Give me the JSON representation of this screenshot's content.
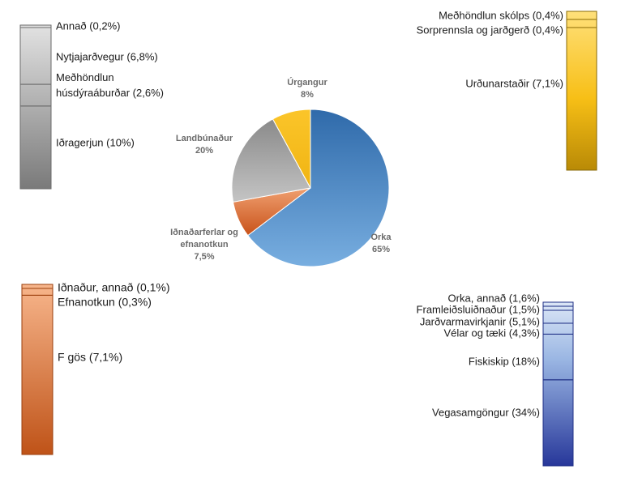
{
  "chart_data": [
    {
      "type": "pie",
      "categories": [
        "Orka",
        "Iðnaðarferlar og efnanotkun",
        "Landbúnaður",
        "Úrgangur"
      ],
      "values": [
        65,
        7.5,
        20,
        8
      ],
      "value_labels": [
        "65%",
        "7,5%",
        "20%",
        "8%"
      ],
      "colors": [
        "#4a86c6",
        "#e07a3c",
        "#a6a6a6",
        "#f6bd16"
      ]
    },
    {
      "type": "bar",
      "stacked": true,
      "breakdown_of": "Landbúnaður",
      "categories": [
        "Annað (0,2%)",
        "Nytjajarðvegur (6,8%)",
        "Meðhöndlun húsdýraáburðar (2,6%)",
        "Iðragerjun (10%)"
      ],
      "values": [
        0.2,
        6.8,
        2.6,
        10
      ],
      "color": "#a6a6a6"
    },
    {
      "type": "bar",
      "stacked": true,
      "breakdown_of": "Úrgangur",
      "categories": [
        "Meðhöndlun skólps (0,4%)",
        "Sorprennsla og jarðgerð (0,4%)",
        "Urðunarstaðir (7,1%)"
      ],
      "values": [
        0.4,
        0.4,
        7.1
      ],
      "color": "#f6bd16"
    },
    {
      "type": "bar",
      "stacked": true,
      "breakdown_of": "Iðnaðarferlar og efnanotkun",
      "categories": [
        "Iðnaður, annað (0,1%)",
        "Efnanotkun (0,3%)",
        "F gös (7,1%)"
      ],
      "values": [
        0.1,
        0.3,
        7.1
      ],
      "color": "#e07a3c"
    },
    {
      "type": "bar",
      "stacked": true,
      "breakdown_of": "Orka",
      "categories": [
        "Orka, annað (1,6%)",
        "Framleiðsluiðnaður (1,5%)",
        "Jarðvarmavirkjanir (5,1%)",
        "Vélar og tæki (4,3%)",
        "Fiskiskip (18%)",
        "Vegasamgöngur (34%)"
      ],
      "values": [
        1.6,
        1.5,
        5.1,
        4.3,
        18,
        34
      ],
      "color": "#4a86c6"
    }
  ]
}
